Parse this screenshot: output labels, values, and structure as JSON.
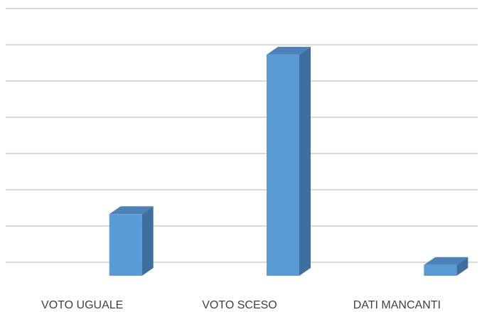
{
  "chart_data": {
    "type": "bar3d",
    "categories": [
      "VOTO UGUALE",
      "VOTO SCESO",
      "DATI MANCANTI"
    ],
    "values": [
      1.7,
      6.1,
      0.3
    ],
    "color": "#5b9bd5",
    "side_color": "#3f6f9e",
    "top_color": "#4c82b8",
    "ylim": [
      0,
      7
    ],
    "yticks": [
      0,
      1,
      2,
      3,
      4,
      5,
      6,
      7
    ],
    "grid": true
  }
}
